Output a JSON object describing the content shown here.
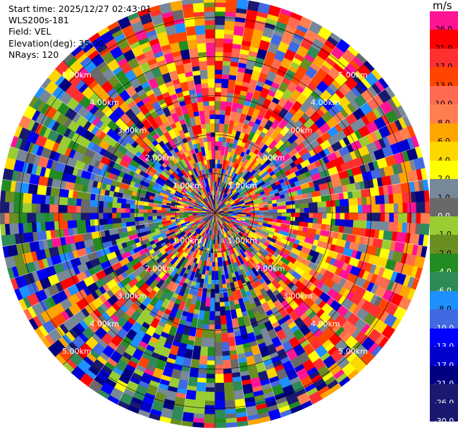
{
  "header": {
    "start_time": "Start time: 2025/12/27 02:43:01",
    "site": "WLS200s-181",
    "field": "Field: VEL",
    "elevation": "Elevation(deg): 35.00",
    "nrays": "NRays: 120"
  },
  "colorbar": {
    "unit": "m/s",
    "levels": [
      {
        "label": "26.0",
        "color": "#ff1493"
      },
      {
        "label": "21.0",
        "color": "#ff0000"
      },
      {
        "label": "17.0",
        "color": "#ff3030"
      },
      {
        "label": "13.0",
        "color": "#ff4500"
      },
      {
        "label": "10.0",
        "color": "#ff6a50"
      },
      {
        "label": "8.0",
        "color": "#ff7f50"
      },
      {
        "label": "6.0",
        "color": "#ffa500"
      },
      {
        "label": "4.0",
        "color": "#ffd700"
      },
      {
        "label": "2.0",
        "color": "#ffff00"
      },
      {
        "label": "1.0",
        "color": "#778899"
      },
      {
        "label": "0.0",
        "color": "#696969"
      },
      {
        "label": "-1.0",
        "color": "#9acd32"
      },
      {
        "label": "-2.0",
        "color": "#6b8e23"
      },
      {
        "label": "-4.0",
        "color": "#228b22"
      },
      {
        "label": "-6.0",
        "color": "#2e8b57"
      },
      {
        "label": "-8.0",
        "color": "#1e90ff"
      },
      {
        "label": "-10.0",
        "color": "#4169e1"
      },
      {
        "label": "-13.0",
        "color": "#0000ff"
      },
      {
        "label": "-17.0",
        "color": "#0000cd"
      },
      {
        "label": "-21.0",
        "color": "#000080"
      },
      {
        "label": "-26.0",
        "color": "#191970"
      },
      {
        "label": "-30.0",
        "color": "#191970"
      }
    ]
  },
  "chart_data": {
    "type": "heatmap",
    "projection": "polar-ppi",
    "field": "VEL",
    "units": "m/s",
    "elevation_deg": 35.0,
    "nrays": 120,
    "range_rings_km": [
      1,
      2,
      3,
      4,
      5
    ],
    "range_ring_labels": [
      "1.00km",
      "2.00km",
      "3.00km",
      "4.00km",
      "5.00km"
    ],
    "max_range_km": 5.5,
    "spokes_deg": [
      0,
      45,
      90,
      135,
      180,
      225,
      270,
      315
    ],
    "pattern_note": "Dense noisy velocity field; warm (positive) bands dominate north and east-southeast, cool (negative) bands dominate west and south."
  }
}
